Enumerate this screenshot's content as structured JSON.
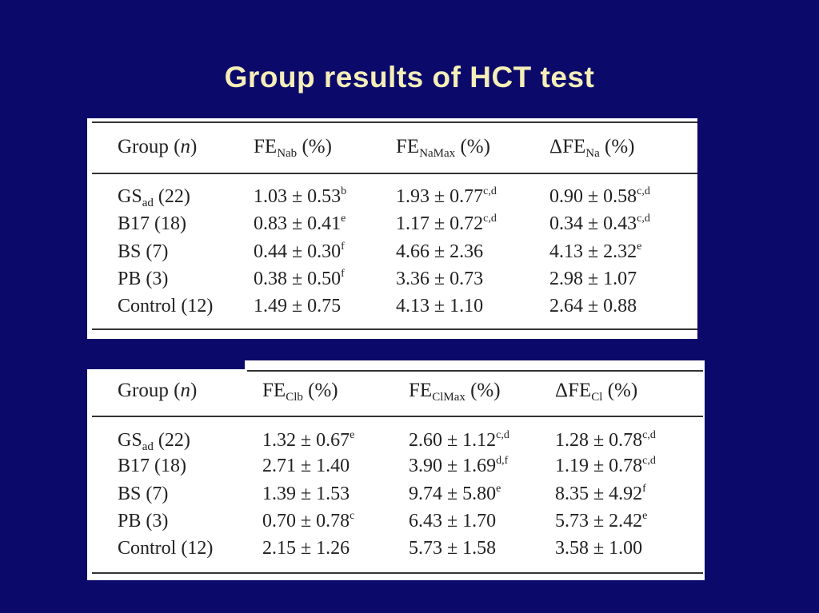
{
  "title": "Group results of HCT test",
  "tables": [
    {
      "headers": [
        {
          "main": "Group (",
          "italic": "n",
          "tail": ")"
        },
        {
          "main": "FE",
          "sub": "Nab",
          "tail": " (%)"
        },
        {
          "main": "FE",
          "sub": "NaMax",
          "tail": " (%)"
        },
        {
          "main": "ΔFE",
          "sub": "Na",
          "tail": " (%)"
        }
      ],
      "rows": [
        {
          "group": {
            "main": "GS",
            "sub": "ad",
            "tail": " (22)"
          },
          "c1": {
            "v": "1.03 ± 0.53",
            "sup": "b"
          },
          "c2": {
            "v": "1.93 ± 0.77",
            "sup": "c,d"
          },
          "c3": {
            "v": "0.90 ± 0.58",
            "sup": "c,d"
          }
        },
        {
          "group": {
            "main": "B17 (18)",
            "sub": "",
            "tail": ""
          },
          "c1": {
            "v": "0.83 ± 0.41",
            "sup": "e"
          },
          "c2": {
            "v": "1.17 ± 0.72",
            "sup": "c,d"
          },
          "c3": {
            "v": "0.34 ± 0.43",
            "sup": "c,d"
          }
        },
        {
          "group": {
            "main": "BS (7)",
            "sub": "",
            "tail": ""
          },
          "c1": {
            "v": "0.44 ± 0.30",
            "sup": "f"
          },
          "c2": {
            "v": "4.66 ± 2.36",
            "sup": ""
          },
          "c3": {
            "v": "4.13 ± 2.32",
            "sup": "e"
          }
        },
        {
          "group": {
            "main": "PB (3)",
            "sub": "",
            "tail": ""
          },
          "c1": {
            "v": "0.38 ± 0.50",
            "sup": "f"
          },
          "c2": {
            "v": "3.36 ± 0.73",
            "sup": ""
          },
          "c3": {
            "v": "2.98 ± 1.07",
            "sup": ""
          }
        },
        {
          "group": {
            "main": "Control (12)",
            "sub": "",
            "tail": ""
          },
          "c1": {
            "v": "1.49 ± 0.75",
            "sup": ""
          },
          "c2": {
            "v": "4.13 ± 1.10",
            "sup": ""
          },
          "c3": {
            "v": "2.64 ± 0.88",
            "sup": ""
          }
        }
      ]
    },
    {
      "headers": [
        {
          "main": "Group (",
          "italic": "n",
          "tail": ")"
        },
        {
          "main": "FE",
          "sub": "Clb",
          "tail": " (%)"
        },
        {
          "main": "FE",
          "sub": "ClMax",
          "tail": " (%)"
        },
        {
          "main": "ΔFE",
          "sub": "Cl",
          "tail": " (%)"
        }
      ],
      "rows": [
        {
          "group": {
            "main": "GS",
            "sub": "ad",
            "tail": " (22)"
          },
          "c1": {
            "v": "1.32 ± 0.67",
            "sup": "e"
          },
          "c2": {
            "v": "2.60 ± 1.12",
            "sup": "c,d"
          },
          "c3": {
            "v": "1.28 ± 0.78",
            "sup": "c,d"
          }
        },
        {
          "group": {
            "main": "B17 (18)",
            "sub": "",
            "tail": ""
          },
          "c1": {
            "v": "2.71 ± 1.40",
            "sup": ""
          },
          "c2": {
            "v": "3.90 ± 1.69",
            "sup": "d,f"
          },
          "c3": {
            "v": "1.19 ± 0.78",
            "sup": "c,d"
          }
        },
        {
          "group": {
            "main": "BS (7)",
            "sub": "",
            "tail": ""
          },
          "c1": {
            "v": "1.39 ± 1.53",
            "sup": ""
          },
          "c2": {
            "v": "9.74 ± 5.80",
            "sup": "e"
          },
          "c3": {
            "v": "8.35 ± 4.92",
            "sup": "f"
          }
        },
        {
          "group": {
            "main": "PB (3)",
            "sub": "",
            "tail": ""
          },
          "c1": {
            "v": "0.70 ± 0.78",
            "sup": "c"
          },
          "c2": {
            "v": "6.43 ± 1.70",
            "sup": ""
          },
          "c3": {
            "v": "5.73 ± 2.42",
            "sup": "e"
          }
        },
        {
          "group": {
            "main": "Control (12)",
            "sub": "",
            "tail": ""
          },
          "c1": {
            "v": "2.15 ± 1.26",
            "sup": ""
          },
          "c2": {
            "v": "5.73 ± 1.58",
            "sup": ""
          },
          "c3": {
            "v": "3.58 ± 1.00",
            "sup": ""
          }
        }
      ]
    }
  ]
}
